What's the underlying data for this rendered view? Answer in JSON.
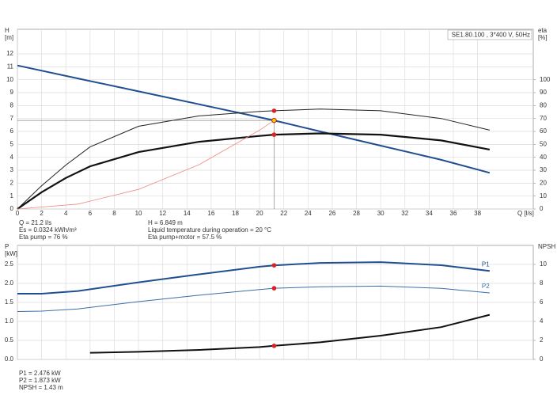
{
  "chart_data": [
    {
      "type": "line",
      "info": "SE1.80.100 , 3*400 V, 50Hz",
      "y_label": [
        "H",
        "[m]"
      ],
      "y2_label": [
        "eta",
        "[%]"
      ],
      "x_label": "Q [l/s]",
      "xlim": [
        0,
        42.6
      ],
      "xticks": [
        0,
        2,
        4,
        6,
        8,
        10,
        12,
        14,
        16,
        18,
        20,
        22,
        24,
        26,
        28,
        30,
        32,
        34,
        36,
        38
      ],
      "ylim": [
        0,
        13.9
      ],
      "yticks": [
        0,
        1,
        2,
        3,
        4,
        5,
        6,
        7,
        8,
        9,
        10,
        11,
        12
      ],
      "y2lim": [
        0,
        139
      ],
      "y2ticks": [
        0,
        10,
        20,
        30,
        40,
        50,
        60,
        70,
        80,
        90,
        100
      ],
      "grid": true,
      "series": [
        {
          "color": "#1f4f8f",
          "width": 2,
          "axis": "y",
          "x": [
            0,
            5,
            10,
            15,
            20,
            21.2,
            25,
            30,
            35,
            39
          ],
          "values": [
            11.1,
            10.1,
            9.1,
            8.1,
            7.1,
            6.849,
            6.0,
            4.9,
            3.8,
            2.8
          ]
        },
        {
          "color": "#222222",
          "width": 1,
          "axis": "y2",
          "x": [
            0,
            2,
            4,
            6,
            10,
            15,
            20,
            21.2,
            25,
            30,
            35,
            39
          ],
          "values": [
            0,
            18,
            34,
            48,
            64,
            72,
            75.5,
            76,
            77.3,
            76,
            70,
            61
          ]
        },
        {
          "color": "#111111",
          "width": 2.2,
          "axis": "y2",
          "x": [
            0,
            2,
            4,
            6,
            10,
            15,
            20,
            21.2,
            25,
            30,
            35,
            39
          ],
          "values": [
            0,
            13,
            24,
            33,
            44,
            52,
            56.5,
            57.5,
            58.5,
            57.5,
            53,
            46
          ]
        },
        {
          "color": "#f08a80",
          "width": 0.8,
          "axis": "y",
          "x": [
            0,
            5,
            10,
            15,
            20,
            21.2
          ],
          "values": [
            0,
            0.38,
            1.52,
            3.43,
            6.1,
            6.849
          ]
        }
      ],
      "duty_point": {
        "x": 21.2,
        "y": 6.849,
        "color": "#f7c600"
      },
      "marker_color": "#e02020",
      "notes": [
        [
          "Q = 21.2 l/s",
          "Es = 0.0324 kWh/m³",
          "Eta pump = 76 %"
        ],
        [
          "H = 6.849 m",
          "Liquid temperature during operation = 20 °C",
          "Eta pump+motor = 57.5 %"
        ]
      ]
    },
    {
      "type": "line",
      "y_label": [
        "P",
        "[kW]"
      ],
      "y2_label": [
        "NPSH"
      ],
      "xlim": [
        0,
        42.6
      ],
      "ylim": [
        0,
        3.0
      ],
      "yticks": [
        {
          "value": 0,
          "label": "0.0"
        },
        0.5,
        {
          "value": 1,
          "label": "1.0"
        },
        1.5,
        {
          "value": 2,
          "label": "2.0"
        },
        2.5
      ],
      "y2lim": [
        0,
        12
      ],
      "y2ticks": [
        0,
        2,
        4,
        6,
        8,
        10
      ],
      "grid": true,
      "series": [
        {
          "name": "P1",
          "color": "#1f4f8f",
          "width": 2,
          "axis": "y",
          "x": [
            0,
            2,
            5,
            10,
            15,
            20,
            21.2,
            25,
            30,
            35,
            39
          ],
          "values": [
            1.73,
            1.73,
            1.8,
            2.03,
            2.24,
            2.44,
            2.476,
            2.54,
            2.56,
            2.48,
            2.33
          ]
        },
        {
          "name": "P2",
          "color": "#3a6ea8",
          "width": 1,
          "axis": "y",
          "x": [
            0,
            2,
            5,
            10,
            15,
            20,
            21.2,
            25,
            30,
            35,
            39
          ],
          "values": [
            1.26,
            1.27,
            1.33,
            1.52,
            1.69,
            1.84,
            1.873,
            1.91,
            1.93,
            1.87,
            1.75
          ]
        },
        {
          "color": "#111111",
          "width": 2,
          "axis": "y2",
          "x": [
            6,
            10,
            15,
            20,
            21.2,
            25,
            30,
            35,
            39
          ],
          "values": [
            0.7,
            0.8,
            1.0,
            1.3,
            1.43,
            1.8,
            2.5,
            3.4,
            4.7
          ]
        }
      ],
      "duty_point": {
        "x": 21.2
      },
      "marker_color": "#e02020",
      "notes": [
        [
          "P1 = 2.476 kW",
          "P2 = 1.873 kW",
          "NPSH = 1.43 m"
        ]
      ]
    }
  ]
}
